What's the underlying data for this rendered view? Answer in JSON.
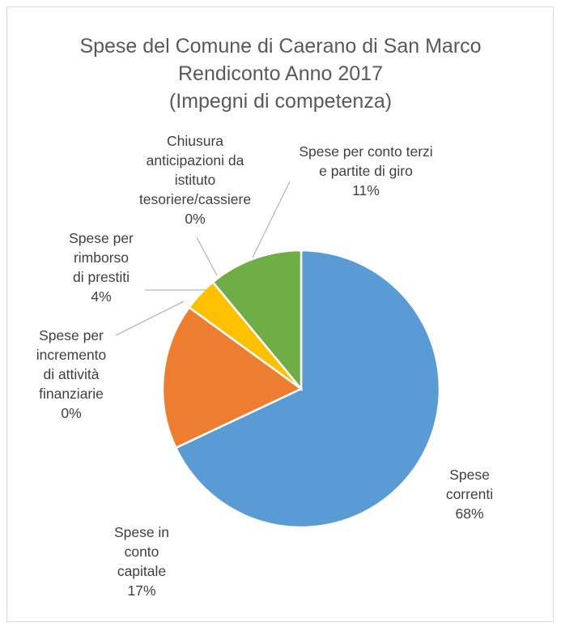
{
  "chart_data": {
    "type": "pie",
    "title": [
      "Spese del Comune di Caerano di San Marco",
      "Rendiconto Anno 2017",
      "(Impegni di competenza)"
    ],
    "slices": [
      {
        "name": "Spese correnti",
        "value": 68,
        "pct_label": "68%",
        "color": "#5B9BD5",
        "label_lines": [
          "Spese",
          "correnti",
          "68%"
        ]
      },
      {
        "name": "Spese in conto capitale",
        "value": 17,
        "pct_label": "17%",
        "color": "#ED7D31",
        "label_lines": [
          "Spese in",
          "conto",
          "capitale",
          "17%"
        ]
      },
      {
        "name": "Spese per incremento di attività finanziarie",
        "value": 0,
        "pct_label": "0%",
        "color": "#A5A5A5",
        "label_lines": [
          "Spese per",
          "incremento",
          "di attività",
          "finanziarie",
          "0%"
        ]
      },
      {
        "name": "Spese per rimborso di prestiti",
        "value": 4,
        "pct_label": "4%",
        "color": "#FFC000",
        "label_lines": [
          "Spese per",
          "rimborso",
          "di prestiti",
          "4%"
        ]
      },
      {
        "name": "Chiusura anticipazioni da istituto tesoriere/cassiere",
        "value": 0,
        "pct_label": "0%",
        "color": "#4472C4",
        "label_lines": [
          "Chiusura",
          "anticipazioni da",
          "istituto",
          "tesoriere/cassiere",
          "0%"
        ]
      },
      {
        "name": "Spese per conto terzi e partite di giro",
        "value": 11,
        "pct_label": "11%",
        "color": "#70AD47",
        "label_lines": [
          "Spese per conto terzi",
          "e partite di giro",
          "11%"
        ]
      }
    ]
  }
}
